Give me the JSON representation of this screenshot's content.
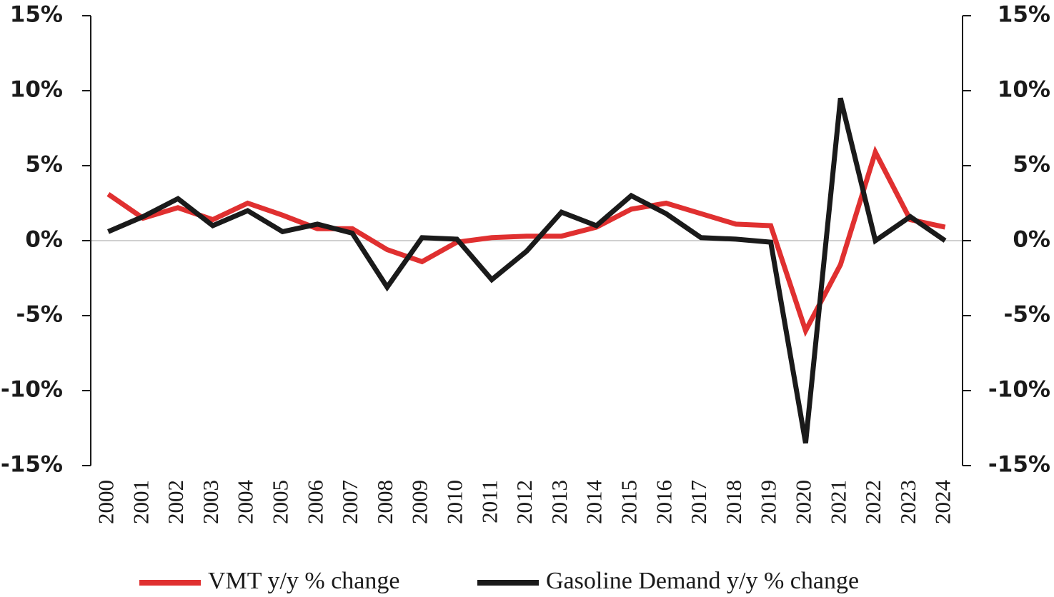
{
  "chart_data": {
    "type": "line",
    "categories": [
      "2000",
      "2001",
      "2002",
      "2003",
      "2004",
      "2005",
      "2006",
      "2007",
      "2008",
      "2009",
      "2010",
      "2011",
      "2012",
      "2013",
      "2014",
      "2015",
      "2016",
      "2017",
      "2018",
      "2019",
      "2020",
      "2021",
      "2022",
      "2023",
      "2024"
    ],
    "series": [
      {
        "name": "VMT y/y % change",
        "color": "#e03030",
        "values": [
          3.1,
          1.5,
          2.2,
          1.4,
          2.5,
          1.7,
          0.8,
          0.8,
          -0.6,
          -1.4,
          -0.1,
          0.2,
          0.3,
          0.3,
          0.9,
          2.1,
          2.5,
          1.8,
          1.1,
          1.0,
          -6.0,
          -1.6,
          5.9,
          1.4,
          0.9
        ]
      },
      {
        "name": "Gasoline Demand y/y % change",
        "color": "#1a1a1a",
        "axis": "y2",
        "values": [
          0.6,
          1.6,
          2.8,
          1.0,
          2.0,
          0.6,
          1.1,
          0.5,
          -3.1,
          0.2,
          0.1,
          -2.6,
          -0.7,
          1.9,
          1.0,
          3.0,
          1.8,
          0.2,
          0.1,
          -0.1,
          -13.5,
          9.5,
          0.0,
          1.6,
          0.0
        ]
      }
    ],
    "ylim": [
      -15,
      15
    ],
    "yticks": [
      {
        "value": -15,
        "label": "-15%"
      },
      {
        "value": -10,
        "label": "-10%"
      },
      {
        "value": -5,
        "label": "-5%"
      },
      {
        "value": 0,
        "label": "0%"
      },
      {
        "value": 5,
        "label": "5%"
      },
      {
        "value": 10,
        "label": "10%"
      },
      {
        "value": 15,
        "label": "15%"
      }
    ],
    "y2lim": [
      -15,
      15
    ],
    "y2ticks": [
      {
        "value": -15,
        "label": "-15%"
      },
      {
        "value": -10,
        "label": "-10%"
      },
      {
        "value": -5,
        "label": "-5%"
      },
      {
        "value": 0,
        "label": "0%"
      },
      {
        "value": 5,
        "label": "5%"
      },
      {
        "value": 10,
        "label": "10%"
      },
      {
        "value": 15,
        "label": "15%"
      }
    ],
    "zero_line": true,
    "legend": "bottom"
  }
}
